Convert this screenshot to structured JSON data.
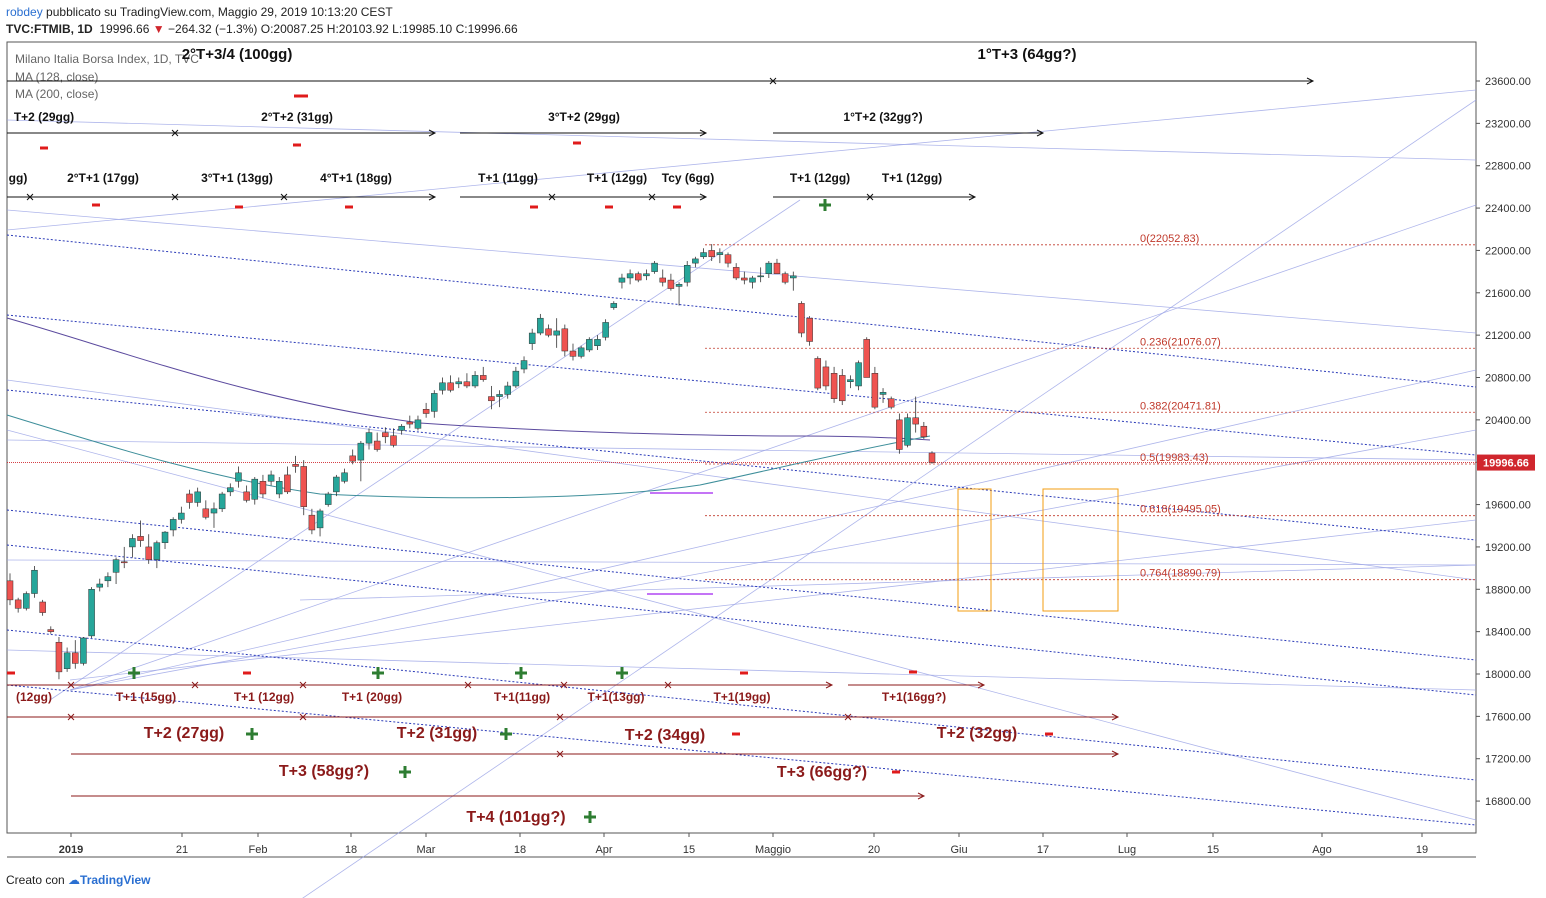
{
  "header": {
    "line1_user": "robdey",
    "line1_rest": "pubblicato su TradingView.com, Maggio 29, 2019 10:13:20 CEST",
    "symbol": "TVC:FTMIB, 1D",
    "last": "19996.66",
    "change": "−264.32 (−1.3%)",
    "ohlc": "O:20087.25 H:20103.92 L:19985.10 C:19996.66"
  },
  "legend": {
    "title": "Milano Italia Borsa Index, 1D, TVC",
    "ma1": "MA (128, close)",
    "ma2": "MA (200, close)"
  },
  "footer": {
    "created": "Creato con",
    "brand": "TradingView"
  },
  "colors": {
    "up": "#26a69a",
    "down": "#ef5350",
    "ma128": "#3d8e9a",
    "ma200": "#5b4a9e",
    "fib": "#c0392b",
    "channel": "#2b3bb8",
    "annot_top": "#111111",
    "annot_bottom": "#8b1a1a",
    "plus": "#2e7d32",
    "minus": "#e01b1b",
    "box": "#f39c12",
    "price_tag": "#d0262d"
  },
  "chart_data": {
    "type": "candlestick",
    "y_axis_ticks": [
      "16800.00",
      "17200.00",
      "17600.00",
      "18000.00",
      "18400.00",
      "18800.00",
      "19200.00",
      "19600.00",
      "20000.00",
      "20400.00",
      "20800.00",
      "21200.00",
      "21600.00",
      "22000.00",
      "22400.00",
      "22800.00",
      "23200.00",
      "23600.00"
    ],
    "ylim": [
      16300,
      24000
    ],
    "x_axis_labels": [
      "2019",
      "21",
      "Feb",
      "18",
      "Mar",
      "18",
      "Apr",
      "15",
      "Maggio",
      "20",
      "Giu",
      "17",
      "Lug",
      "15",
      "Ago",
      "19"
    ],
    "last_price_tag": "19996.66",
    "candles": [
      [
        18880,
        18950,
        18650,
        18700
      ],
      [
        18700,
        18720,
        18580,
        18620
      ],
      [
        18620,
        18780,
        18600,
        18760
      ],
      [
        18760,
        19020,
        18720,
        18980
      ],
      [
        18680,
        18700,
        18550,
        18580
      ],
      [
        18420,
        18450,
        18380,
        18400
      ],
      [
        18300,
        18350,
        17950,
        18020
      ],
      [
        18050,
        18250,
        18020,
        18200
      ],
      [
        18200,
        18320,
        18050,
        18100
      ],
      [
        18100,
        18350,
        18080,
        18340
      ],
      [
        18360,
        18820,
        18340,
        18800
      ],
      [
        18820,
        18900,
        18780,
        18850
      ],
      [
        18880,
        18960,
        18820,
        18920
      ],
      [
        18960,
        19100,
        18850,
        19080
      ],
      [
        19060,
        19200,
        19000,
        19050
      ],
      [
        19200,
        19320,
        19100,
        19280
      ],
      [
        19300,
        19450,
        19200,
        19260
      ],
      [
        19200,
        19320,
        19040,
        19080
      ],
      [
        19080,
        19260,
        19000,
        19240
      ],
      [
        19240,
        19350,
        19180,
        19340
      ],
      [
        19360,
        19480,
        19300,
        19460
      ],
      [
        19460,
        19580,
        19420,
        19520
      ],
      [
        19700,
        19740,
        19560,
        19620
      ],
      [
        19620,
        19760,
        19580,
        19720
      ],
      [
        19560,
        19640,
        19460,
        19480
      ],
      [
        19520,
        19620,
        19380,
        19560
      ],
      [
        19560,
        19720,
        19530,
        19700
      ],
      [
        19720,
        19800,
        19680,
        19760
      ],
      [
        19820,
        19960,
        19760,
        19900
      ],
      [
        19720,
        19780,
        19620,
        19640
      ],
      [
        19650,
        19860,
        19600,
        19840
      ],
      [
        19820,
        19880,
        19660,
        19700
      ],
      [
        19820,
        19920,
        19780,
        19880
      ],
      [
        19700,
        19860,
        19660,
        19820
      ],
      [
        19880,
        19960,
        19700,
        19720
      ],
      [
        19980,
        20060,
        19900,
        19960
      ],
      [
        19960,
        20020,
        19500,
        19580
      ],
      [
        19500,
        19560,
        19320,
        19360
      ],
      [
        19380,
        19560,
        19300,
        19540
      ],
      [
        19600,
        19720,
        19580,
        19700
      ],
      [
        19720,
        19880,
        19680,
        19860
      ],
      [
        19820,
        19940,
        19800,
        19900
      ],
      [
        20060,
        20120,
        19980,
        20010
      ],
      [
        20020,
        20200,
        19820,
        20180
      ],
      [
        20180,
        20320,
        20120,
        20280
      ],
      [
        20200,
        20280,
        20100,
        20120
      ],
      [
        20280,
        20330,
        20180,
        20240
      ],
      [
        20250,
        20320,
        20140,
        20160
      ],
      [
        20300,
        20360,
        20260,
        20340
      ],
      [
        20380,
        20440,
        20320,
        20360
      ],
      [
        20320,
        20440,
        20300,
        20400
      ],
      [
        20500,
        20560,
        20420,
        20460
      ],
      [
        20480,
        20680,
        20420,
        20650
      ],
      [
        20680,
        20800,
        20640,
        20750
      ],
      [
        20750,
        20820,
        20660,
        20680
      ],
      [
        20740,
        20800,
        20700,
        20760
      ],
      [
        20760,
        20840,
        20700,
        20720
      ],
      [
        20720,
        20860,
        20700,
        20820
      ],
      [
        20820,
        20900,
        20760,
        20780
      ],
      [
        20620,
        20720,
        20500,
        20580
      ],
      [
        20620,
        20680,
        20520,
        20640
      ],
      [
        20640,
        20760,
        20600,
        20720
      ],
      [
        20720,
        20900,
        20700,
        20860
      ],
      [
        20880,
        21000,
        20840,
        20960
      ],
      [
        21120,
        21260,
        21060,
        21220
      ],
      [
        21220,
        21400,
        21200,
        21360
      ],
      [
        21260,
        21300,
        21180,
        21200
      ],
      [
        21200,
        21360,
        21080,
        21240
      ],
      [
        21260,
        21300,
        21000,
        21050
      ],
      [
        21050,
        21120,
        20960,
        21000
      ],
      [
        21000,
        21100,
        20980,
        21080
      ],
      [
        21060,
        21180,
        21040,
        21160
      ],
      [
        21100,
        21200,
        21060,
        21160
      ],
      [
        21180,
        21350,
        21150,
        21320
      ],
      [
        21460,
        21520,
        21440,
        21500
      ],
      [
        21700,
        21780,
        21640,
        21740
      ],
      [
        21740,
        21820,
        21680,
        21780
      ],
      [
        21780,
        21800,
        21700,
        21720
      ],
      [
        21760,
        21820,
        21720,
        21780
      ],
      [
        21800,
        21900,
        21780,
        21880
      ],
      [
        21740,
        21820,
        21660,
        21700
      ],
      [
        21720,
        21780,
        21620,
        21640
      ],
      [
        21660,
        21700,
        21480,
        21680
      ],
      [
        21700,
        21900,
        21660,
        21860
      ],
      [
        21880,
        21940,
        21840,
        21920
      ],
      [
        21940,
        22020,
        21920,
        21980
      ],
      [
        22000,
        22060,
        21900,
        21940
      ],
      [
        21960,
        22020,
        21880,
        21980
      ],
      [
        21960,
        21980,
        21840,
        21880
      ],
      [
        21840,
        21880,
        21720,
        21740
      ],
      [
        21740,
        21800,
        21680,
        21720
      ],
      [
        21700,
        21760,
        21640,
        21740
      ],
      [
        21760,
        21840,
        21700,
        21760
      ],
      [
        21780,
        21900,
        21740,
        21880
      ],
      [
        21880,
        21920,
        21780,
        21780
      ],
      [
        21780,
        21800,
        21680,
        21700
      ],
      [
        21740,
        21800,
        21620,
        21760
      ],
      [
        21500,
        21520,
        21180,
        21220
      ],
      [
        21360,
        21380,
        21100,
        21140
      ],
      [
        20980,
        21000,
        20680,
        20700
      ],
      [
        20900,
        20960,
        20680,
        20720
      ],
      [
        20840,
        20900,
        20560,
        20600
      ],
      [
        20820,
        20880,
        20540,
        20580
      ],
      [
        20760,
        20820,
        20700,
        20780
      ],
      [
        20720,
        20960,
        20680,
        20940
      ],
      [
        21160,
        21180,
        20800,
        20800
      ],
      [
        20840,
        20900,
        20500,
        20520
      ],
      [
        20640,
        20700,
        20560,
        20660
      ],
      [
        20600,
        20620,
        20500,
        20520
      ],
      [
        20400,
        20460,
        20080,
        20120
      ],
      [
        20160,
        20460,
        20140,
        20420
      ],
      [
        20420,
        20620,
        20280,
        20360
      ],
      [
        20340,
        20380,
        20220,
        20240
      ],
      [
        20087,
        20104,
        19985,
        19997
      ]
    ],
    "fib_levels": [
      {
        "label": "0(22052.83)",
        "value": 22052.83
      },
      {
        "label": "0.236(21076.07)",
        "value": 21076.07
      },
      {
        "label": "0.382(20471.81)",
        "value": 20471.81
      },
      {
        "label": "0.5(19983.43)",
        "value": 19983.43
      },
      {
        "label": "0.618(19495.05)",
        "value": 19495.05
      },
      {
        "label": "0.764(18890.79)",
        "value": 18890.79
      }
    ],
    "top_annotations": [
      "2°T+3/4 (100gg)",
      "1°T+3 (64gg?)",
      "T+2 (29gg)",
      "2°T+2 (31gg)",
      "3°T+2 (29gg)",
      "1°T+2 (32gg?)",
      "gg)",
      "2°T+1 (17gg)",
      "3°T+1 (13gg)",
      "4°T+1 (18gg)",
      "T+1 (11gg)",
      "T+1 (12gg)",
      "Tcy (6gg)",
      "T+1 (12gg)",
      "T+1 (12gg)"
    ],
    "bottom_annotations_small": [
      "(12gg)",
      "T+1 (15gg)",
      "T+1 (12gg)",
      "T+1 (20gg)",
      "T+1(11gg)",
      "T+1(13gg)",
      "T+1(19gg)",
      "T+1(16gg?)"
    ],
    "bottom_annotations_big": [
      "T+2 (27gg)",
      "T+2 (31gg)",
      "T+2 (34gg)",
      "T+2 (32gg)",
      "T+3 (58gg?)",
      "T+3 (66gg?)",
      "T+4 (101gg?)"
    ]
  }
}
